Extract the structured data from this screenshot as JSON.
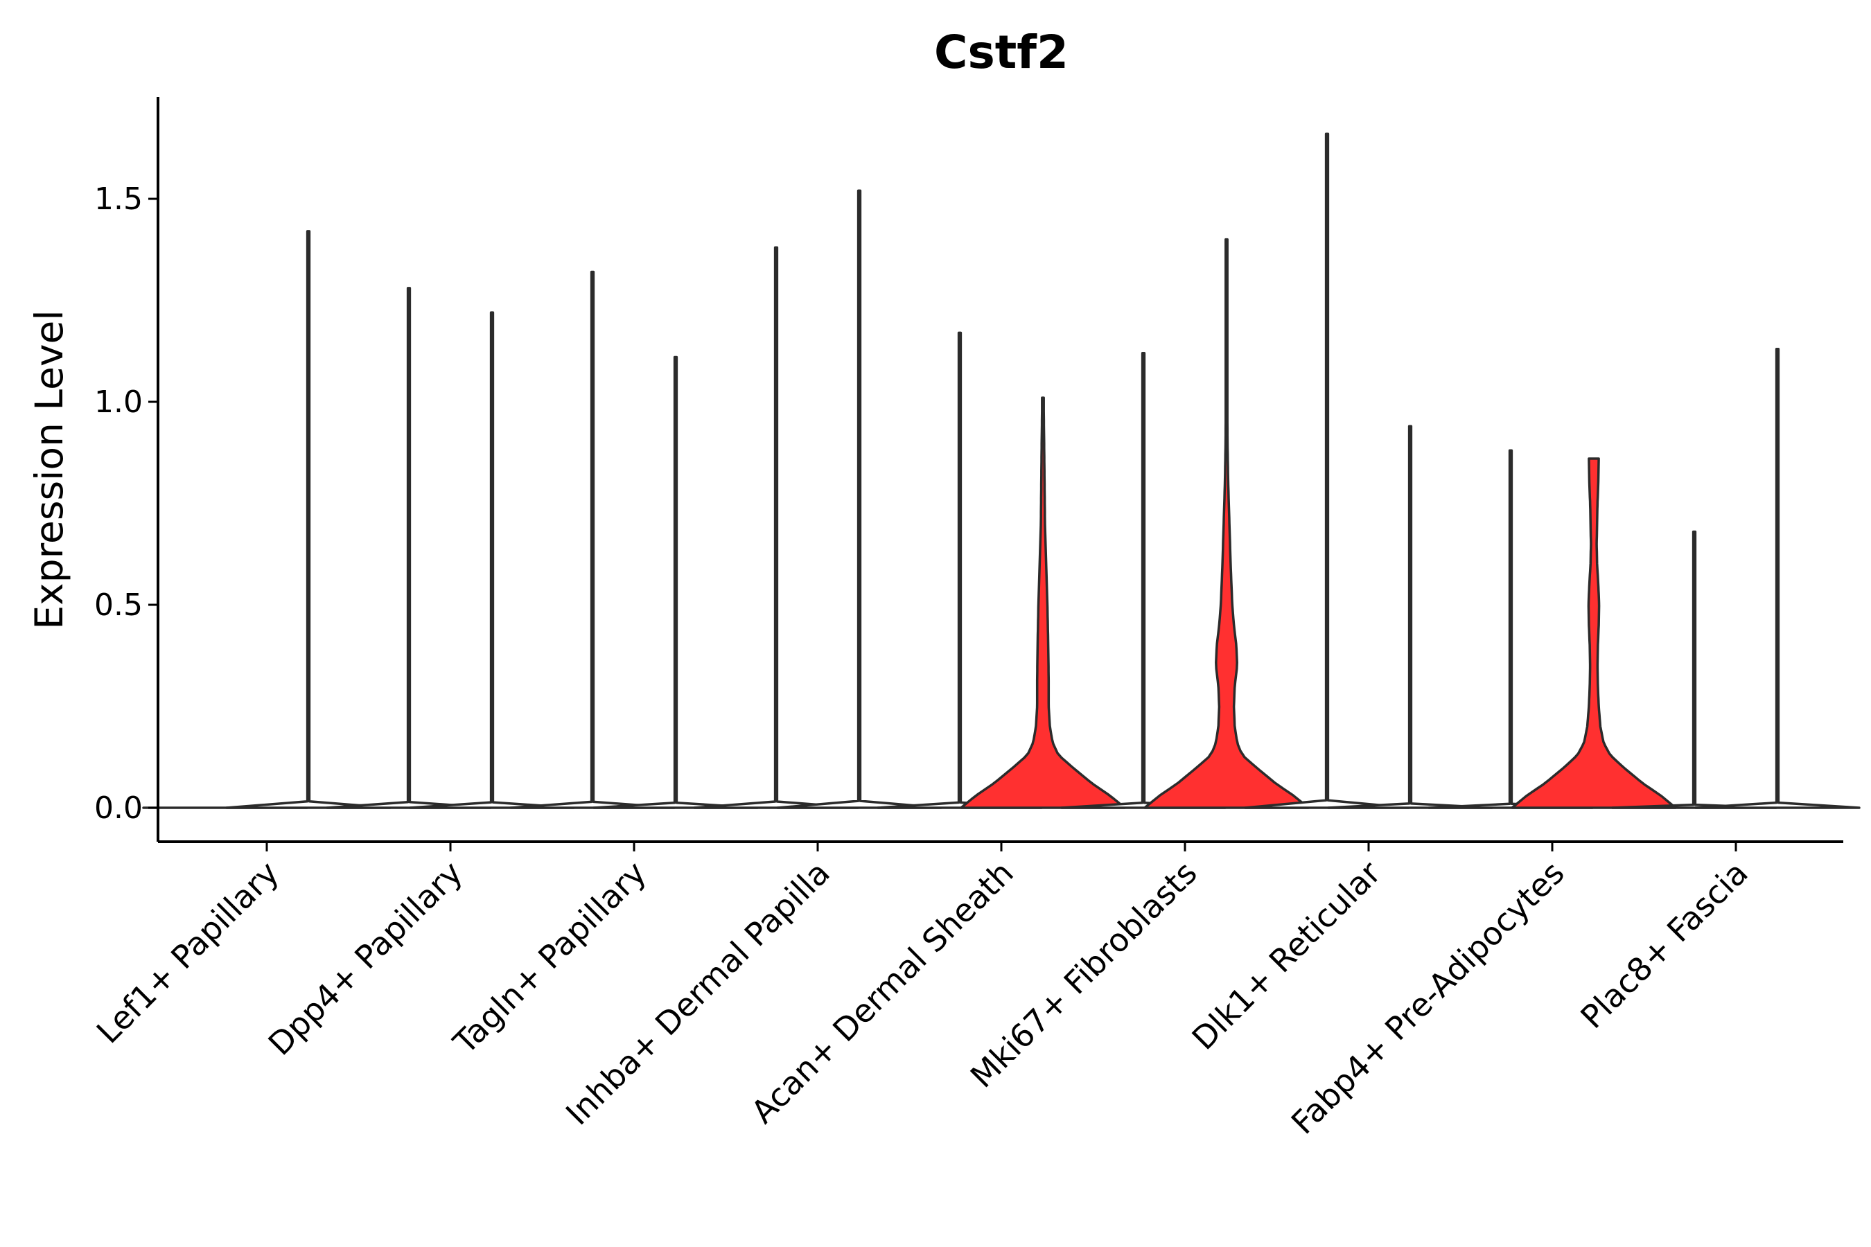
{
  "chart_data": {
    "type": "violin",
    "title": "Cstf2",
    "xlabel": "",
    "ylabel": "Expression Level",
    "ylim": [
      -0.08,
      1.75
    ],
    "yticks": [
      "0.0",
      "0.5",
      "1.0",
      "1.5"
    ],
    "ytick_values": [
      0,
      0.5,
      1.0,
      1.5
    ],
    "grid": false,
    "legend": "none",
    "fill_color": "#FF3030",
    "categories": [
      "Lef1+ Papillary",
      "Dpp4+ Papillary",
      "Tagln+ Papillary",
      "Inhba+ Dermal Papilla",
      "Acan+ Dermal Sheath",
      "Mki67+ Fibroblasts",
      "Dlk1+ Reticular",
      "Fabp4+ Pre-Adipocytes",
      "Plac8+ Fascia"
    ],
    "groups": [
      {
        "name": "Lef1+ Papillary",
        "left": {
          "max": 0,
          "profile": [
            [
              0,
              1
            ]
          ]
        },
        "right": {
          "max": 1.42,
          "profile": [
            [
              0,
              1
            ]
          ]
        }
      },
      {
        "name": "Dpp4+ Papillary",
        "left": {
          "max": 1.28,
          "profile": [
            [
              0,
              1
            ]
          ]
        },
        "right": {
          "max": 1.22,
          "profile": [
            [
              0,
              1
            ]
          ]
        }
      },
      {
        "name": "Tagln+ Papillary",
        "left": {
          "max": 1.32,
          "profile": [
            [
              0,
              1
            ]
          ]
        },
        "right": {
          "max": 1.11,
          "profile": [
            [
              0,
              1
            ]
          ]
        }
      },
      {
        "name": "Inhba+ Dermal Papilla",
        "left": {
          "max": 1.38,
          "profile": [
            [
              0,
              1
            ]
          ]
        },
        "right": {
          "max": 1.52,
          "profile": [
            [
              0,
              1
            ]
          ]
        }
      },
      {
        "name": "Acan+ Dermal Sheath",
        "left": {
          "max": 1.17,
          "profile": [
            [
              0,
              1
            ]
          ]
        },
        "right": {
          "max": 1.01,
          "profile": [
            [
              0,
              1
            ],
            [
              0.03,
              0.82
            ],
            [
              0.06,
              0.6
            ],
            [
              0.1,
              0.36
            ],
            [
              0.13,
              0.19
            ],
            [
              0.16,
              0.12
            ],
            [
              0.2,
              0.085
            ],
            [
              0.25,
              0.07
            ],
            [
              0.32,
              0.07
            ],
            [
              0.4,
              0.065
            ],
            [
              0.5,
              0.055
            ],
            [
              0.6,
              0.04
            ],
            [
              0.7,
              0.025
            ],
            [
              0.8,
              0.02
            ],
            [
              0.9,
              0.015
            ],
            [
              1.01,
              0.008
            ]
          ]
        }
      },
      {
        "name": "Mki67+ Fibroblasts",
        "left": {
          "max": 1.12,
          "profile": [
            [
              0,
              1
            ]
          ]
        },
        "right": {
          "max": 1.4,
          "profile": [
            [
              0,
              1
            ],
            [
              0.03,
              0.82
            ],
            [
              0.06,
              0.6
            ],
            [
              0.1,
              0.36
            ],
            [
              0.13,
              0.19
            ],
            [
              0.16,
              0.13
            ],
            [
              0.2,
              0.1
            ],
            [
              0.25,
              0.09
            ],
            [
              0.3,
              0.1
            ],
            [
              0.35,
              0.13
            ],
            [
              0.4,
              0.12
            ],
            [
              0.45,
              0.09
            ],
            [
              0.5,
              0.07
            ],
            [
              0.6,
              0.05
            ],
            [
              0.7,
              0.035
            ],
            [
              0.8,
              0.02
            ],
            [
              0.9,
              0.012
            ],
            [
              1.0,
              0.008
            ],
            [
              1.2,
              0.006
            ],
            [
              1.4,
              0.004
            ]
          ]
        }
      },
      {
        "name": "Dlk1+ Reticular",
        "left": {
          "max": 1.66,
          "profile": [
            [
              0,
              1
            ]
          ]
        },
        "right": {
          "max": 0.94,
          "profile": [
            [
              0,
              1
            ]
          ]
        }
      },
      {
        "name": "Fabp4+ Pre-Adipocytes",
        "left": {
          "max": 0.88,
          "profile": [
            [
              0,
              1
            ]
          ]
        },
        "right": {
          "max": 0.86,
          "profile": [
            [
              0,
              1
            ],
            [
              0.03,
              0.82
            ],
            [
              0.06,
              0.6
            ],
            [
              0.1,
              0.36
            ],
            [
              0.13,
              0.2
            ],
            [
              0.16,
              0.12
            ],
            [
              0.2,
              0.08
            ],
            [
              0.25,
              0.06
            ],
            [
              0.3,
              0.05
            ],
            [
              0.35,
              0.045
            ],
            [
              0.4,
              0.05
            ],
            [
              0.45,
              0.06
            ],
            [
              0.5,
              0.065
            ],
            [
              0.55,
              0.055
            ],
            [
              0.6,
              0.04
            ],
            [
              0.65,
              0.035
            ],
            [
              0.7,
              0.04
            ],
            [
              0.75,
              0.045
            ],
            [
              0.8,
              0.055
            ],
            [
              0.86,
              0.06
            ]
          ]
        }
      },
      {
        "name": "Plac8+ Fascia",
        "left": {
          "max": 0.68,
          "profile": [
            [
              0,
              1
            ]
          ]
        },
        "right": {
          "max": 1.13,
          "profile": [
            [
              0,
              1
            ]
          ]
        }
      }
    ]
  }
}
